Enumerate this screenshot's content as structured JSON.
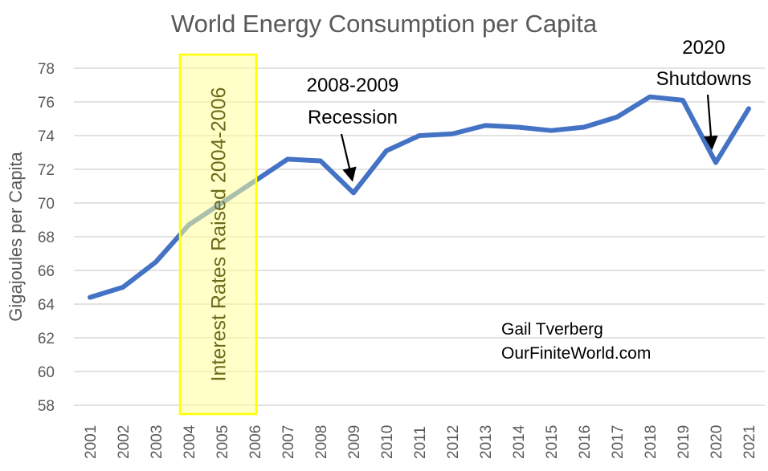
{
  "chart_data": {
    "type": "line",
    "title": "World Energy Consumption per Capita",
    "xlabel": "",
    "ylabel": "Gigajoules per Capita",
    "ylim": [
      58,
      78
    ],
    "yticks": [
      58,
      60,
      62,
      64,
      66,
      68,
      70,
      72,
      74,
      76,
      78
    ],
    "grid": true,
    "x": [
      "2001",
      "2002",
      "2003",
      "2004",
      "2005",
      "2006",
      "2007",
      "2008",
      "2009",
      "2010",
      "2011",
      "2012",
      "2013",
      "2014",
      "2015",
      "2016",
      "2017",
      "2018",
      "2019",
      "2020",
      "2021"
    ],
    "series": [
      {
        "name": "World Energy Consumption per Capita",
        "color": "#4472C4",
        "values": [
          64.4,
          65.0,
          66.5,
          68.7,
          70.0,
          71.3,
          72.6,
          72.5,
          70.6,
          73.1,
          74.0,
          74.1,
          74.6,
          74.5,
          74.3,
          74.5,
          75.1,
          76.3,
          76.1,
          72.4,
          75.6
        ]
      }
    ],
    "highlight_band": {
      "label": "Interest Rates Raised 2004-2006",
      "from": "2004",
      "to": "2006",
      "fill": "#FFFF99",
      "border": "#FFFF00"
    },
    "annotations": [
      {
        "lines": [
          "2008-2009",
          "Recession"
        ],
        "points_to": "2009"
      },
      {
        "lines": [
          "2020",
          "Shutdowns"
        ],
        "points_to": "2020"
      }
    ],
    "credit": [
      "Gail Tverberg",
      "OurFiniteWorld.com"
    ]
  }
}
